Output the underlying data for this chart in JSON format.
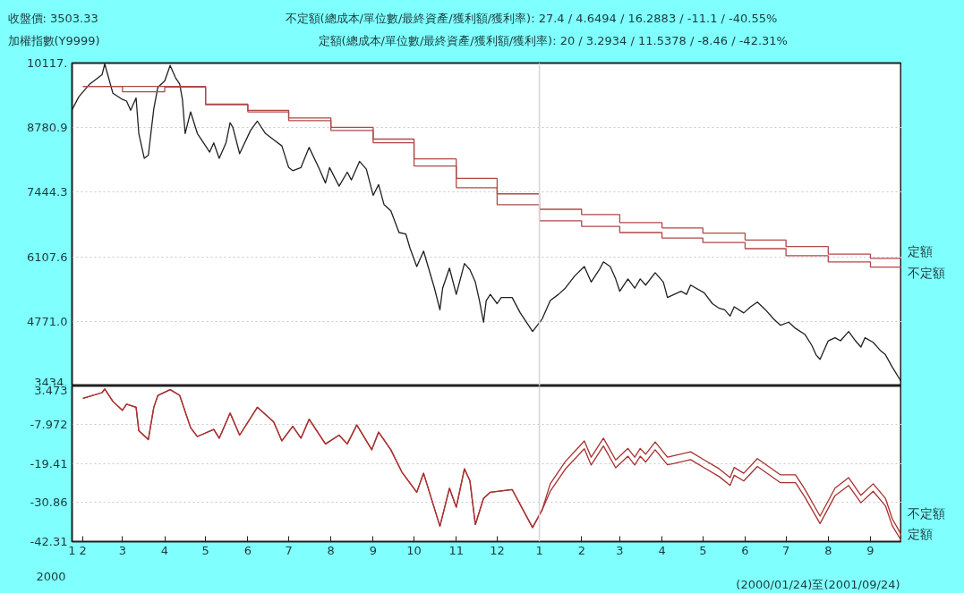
{
  "chart_data": [
    {
      "type": "line",
      "annotations": [
        "收盤價: 3503.33",
        "不定額(總成本/單位數/最終資產/獲利額/獲利率): 27.4 / 4.6494 / 16.2883 / -11.1 / -40.55%",
        "加權指數(Y9999)",
        "定額(總成本/單位數/最終資產/獲利額/獲利率): 20 / 3.2934 / 11.5378 / -8.46 / -42.31%"
      ],
      "xlim": [
        "2000-01-24",
        "2001-09-24"
      ],
      "ylim": [
        3434,
        10117
      ],
      "yticks": [
        {
          "value": 10117,
          "label": "10117."
        },
        8780.9,
        7444.3,
        6107.6,
        {
          "value": 4771.0,
          "label": "4771.0"
        },
        {
          "value": 3434,
          "label": "3434."
        }
      ],
      "tick_labels": "y",
      "grid": "y",
      "ref_lines": [
        {
          "axis": "x",
          "value": "2001-01-01",
          "color": "#d4d4dc"
        }
      ],
      "series": [
        {
          "type": "line",
          "color": "#202020",
          "x": [
            "2000-01-24",
            "2000-01-29",
            "2000-02-06",
            "2000-02-15",
            "2000-02-17",
            "2000-02-23",
            "2000-03-01",
            "2000-03-04",
            "2000-03-07",
            "2000-03-11",
            "2000-03-13",
            "2000-03-17",
            "2000-03-20",
            "2000-03-24",
            "2000-03-27",
            "2000-04-01",
            "2000-04-05",
            "2000-04-09",
            "2000-04-12",
            "2000-04-14",
            "2000-04-16",
            "2000-04-20",
            "2000-04-25",
            "2000-05-01",
            "2000-05-04",
            "2000-05-07",
            "2000-05-11",
            "2000-05-16",
            "2000-05-19",
            "2000-05-21",
            "2000-05-26",
            "2000-06-03",
            "2000-06-08",
            "2000-06-14",
            "2000-06-20",
            "2000-06-26",
            "2000-07-01",
            "2000-07-04",
            "2000-07-10",
            "2000-07-16",
            "2000-07-23",
            "2000-07-28",
            "2000-07-31",
            "2000-08-07",
            "2000-08-13",
            "2000-08-16",
            "2000-08-22",
            "2000-08-27",
            "2000-09-01",
            "2000-09-05",
            "2000-09-09",
            "2000-09-14",
            "2000-09-20",
            "2000-09-25",
            "2000-09-28",
            "2000-10-03",
            "2000-10-08",
            "2000-10-12",
            "2000-10-16",
            "2000-10-20",
            "2000-10-22",
            "2000-10-27",
            "2000-11-01",
            "2000-11-07",
            "2000-11-11",
            "2000-11-15",
            "2000-11-18",
            "2000-11-21",
            "2000-11-23",
            "2000-11-26",
            "2000-12-01",
            "2000-12-04",
            "2000-12-12",
            "2000-12-18",
            "2000-12-24",
            "2000-12-27",
            "2001-01-03",
            "2001-01-09",
            "2001-01-15",
            "2001-01-20",
            "2001-01-27",
            "2001-02-03",
            "2001-02-08",
            "2001-02-14",
            "2001-02-17",
            "2001-02-22",
            "2001-02-26",
            "2001-03-01",
            "2001-03-07",
            "2001-03-12",
            "2001-03-16",
            "2001-03-20",
            "2001-03-27",
            "2001-04-02",
            "2001-04-05",
            "2001-04-10",
            "2001-04-15",
            "2001-04-19",
            "2001-04-22",
            "2001-05-02",
            "2001-05-08",
            "2001-05-13",
            "2001-05-17",
            "2001-05-21",
            "2001-05-24",
            "2001-05-31",
            "2001-06-05",
            "2001-06-10",
            "2001-06-16",
            "2001-06-22",
            "2001-06-27",
            "2001-07-03",
            "2001-07-08",
            "2001-07-15",
            "2001-07-20",
            "2001-07-23",
            "2001-07-26",
            "2001-08-01",
            "2001-08-06",
            "2001-08-10",
            "2001-08-16",
            "2001-08-21",
            "2001-08-25",
            "2001-08-28",
            "2001-09-03",
            "2001-09-08",
            "2001-09-12",
            "2001-09-17",
            "2001-09-24"
          ],
          "values": [
            9151,
            9420,
            9683,
            9875,
            10099,
            9491,
            9363,
            9330,
            9139,
            9395,
            8658,
            8146,
            8210,
            9170,
            9619,
            9747,
            10067,
            9811,
            9683,
            9363,
            8658,
            9107,
            8658,
            8402,
            8274,
            8466,
            8146,
            8466,
            8882,
            8786,
            8242,
            8722,
            8914,
            8658,
            8530,
            8402,
            7954,
            7890,
            7954,
            8370,
            7954,
            7634,
            7954,
            7570,
            7858,
            7698,
            8082,
            7922,
            7378,
            7602,
            7186,
            7058,
            6609,
            6577,
            6289,
            5905,
            6225,
            5841,
            5457,
            5009,
            5457,
            5873,
            5329,
            5969,
            5841,
            5585,
            5201,
            4753,
            5201,
            5329,
            5137,
            5265,
            5265,
            4945,
            4689,
            4561,
            4817,
            5201,
            5329,
            5457,
            5713,
            5905,
            5585,
            5841,
            6001,
            5905,
            5649,
            5393,
            5649,
            5457,
            5649,
            5521,
            5777,
            5585,
            5265,
            5329,
            5393,
            5329,
            5521,
            5361,
            5137,
            5041,
            5009,
            4881,
            5073,
            4945,
            5073,
            5169,
            5009,
            4817,
            4689,
            4753,
            4625,
            4497,
            4272,
            4080,
            3984,
            4368,
            4432,
            4368,
            4561,
            4368,
            4240,
            4432,
            4336,
            4176,
            4080,
            3824,
            3503
          ]
        },
        {
          "type": "step",
          "name": "定額",
          "color": "#b04848",
          "x": [
            "2000-02-01",
            "2000-03-01",
            "2000-04-01",
            "2000-05-01",
            "2000-06-01",
            "2000-07-01",
            "2000-08-01",
            "2000-09-01",
            "2000-10-01",
            "2000-11-01",
            "2000-12-01",
            "2001-01-01",
            "2001-02-01",
            "2001-03-01",
            "2001-04-01",
            "2001-05-01",
            "2001-06-01",
            "2001-07-01",
            "2001-08-01",
            "2001-09-01",
            "2001-09-24"
          ],
          "values": [
            9632,
            9632,
            9632,
            9267,
            9139,
            8979,
            8786,
            8543,
            8133,
            7730,
            7410,
            7090,
            6981,
            6814,
            6705,
            6596,
            6455,
            6321,
            6161,
            6073,
            6073
          ]
        },
        {
          "type": "step",
          "name": "不定額",
          "color": "#b04848",
          "x": [
            "2000-02-01",
            "2000-03-01",
            "2000-04-01",
            "2000-05-01",
            "2000-06-01",
            "2000-07-01",
            "2000-08-01",
            "2000-09-01",
            "2000-10-01",
            "2000-11-01",
            "2000-12-01",
            "2001-01-01",
            "2001-02-01",
            "2001-03-01",
            "2001-04-01",
            "2001-05-01",
            "2001-06-01",
            "2001-07-01",
            "2001-08-01",
            "2001-09-01",
            "2001-09-24"
          ],
          "values": [
            9632,
            9523,
            9619,
            9254,
            9107,
            8927,
            8722,
            8466,
            7986,
            7538,
            7186,
            6853,
            6737,
            6609,
            6494,
            6404,
            6276,
            6129,
            6001,
            5893,
            5893
          ]
        }
      ]
    },
    {
      "type": "line",
      "annotations": [
        "2000",
        "(2000/01/24)至(2001/09/24)"
      ],
      "xlim": [
        "2000-01-24",
        "2001-09-24"
      ],
      "xticks": [
        {
          "value": "2000-01-24",
          "label": "1"
        },
        {
          "value": "2000-02-01",
          "label": "2"
        },
        {
          "value": "2000-03-01",
          "label": "3"
        },
        {
          "value": "2000-04-01",
          "label": "4"
        },
        {
          "value": "2000-05-01",
          "label": "5"
        },
        {
          "value": "2000-06-01",
          "label": "6"
        },
        {
          "value": "2000-07-01",
          "label": "7"
        },
        {
          "value": "2000-08-01",
          "label": "8"
        },
        {
          "value": "2000-09-01",
          "label": "9"
        },
        {
          "value": "2000-10-01",
          "label": "10"
        },
        {
          "value": "2000-11-01",
          "label": "11"
        },
        {
          "value": "2000-12-01",
          "label": "12"
        },
        {
          "value": "2001-01-01",
          "label": "1"
        },
        {
          "value": "2001-02-01",
          "label": "2"
        },
        {
          "value": "2001-03-01",
          "label": "3"
        },
        {
          "value": "2001-04-01",
          "label": "4"
        },
        {
          "value": "2001-05-01",
          "label": "5"
        },
        {
          "value": "2001-06-01",
          "label": "6"
        },
        {
          "value": "2001-07-01",
          "label": "7"
        },
        {
          "value": "2001-08-01",
          "label": "8"
        },
        {
          "value": "2001-09-01",
          "label": "9"
        }
      ],
      "ylim": [
        -42.31,
        3.473
      ],
      "yticks": [
        3.473,
        -7.972,
        -19.41,
        -30.86,
        -42.31
      ],
      "grid": "y",
      "ref_lines": [
        {
          "axis": "x",
          "value": "2001-01-01",
          "color": "#d4d4dc"
        }
      ],
      "series": [
        {
          "name": "不定額",
          "color": "#a83030",
          "x": [
            "2000-02-01",
            "2000-02-15",
            "2000-02-17",
            "2000-02-23",
            "2000-03-01",
            "2000-03-04",
            "2000-03-11",
            "2000-03-13",
            "2000-03-20",
            "2000-03-24",
            "2000-03-27",
            "2000-04-05",
            "2000-04-12",
            "2000-04-20",
            "2000-04-25",
            "2000-05-07",
            "2000-05-11",
            "2000-05-19",
            "2000-05-26",
            "2000-06-08",
            "2000-06-20",
            "2000-06-26",
            "2000-07-04",
            "2000-07-10",
            "2000-07-16",
            "2000-07-28",
            "2000-08-07",
            "2000-08-13",
            "2000-08-20",
            "2000-08-31",
            "2000-09-05",
            "2000-09-14",
            "2000-09-22",
            "2000-10-03",
            "2000-10-08",
            "2000-10-20",
            "2000-10-27",
            "2000-11-01",
            "2000-11-07",
            "2000-11-11",
            "2000-11-15",
            "2000-11-21",
            "2000-11-26",
            "2000-12-12",
            "2000-12-27",
            "2001-01-03",
            "2001-01-09",
            "2001-01-20",
            "2001-02-03",
            "2001-02-08",
            "2001-02-17",
            "2001-02-26",
            "2001-03-07",
            "2001-03-12",
            "2001-03-16",
            "2001-03-20",
            "2001-03-27",
            "2001-04-05",
            "2001-04-10",
            "2001-04-22",
            "2001-05-02",
            "2001-05-13",
            "2001-05-21",
            "2001-05-24",
            "2001-05-31",
            "2001-06-10",
            "2001-06-27",
            "2001-07-08",
            "2001-07-15",
            "2001-07-26",
            "2001-08-06",
            "2001-08-16",
            "2001-08-25",
            "2001-09-03",
            "2001-09-12",
            "2001-09-17",
            "2001-09-24"
          ],
          "values": [
            -0.2,
            1.5,
            2.6,
            -1.1,
            -3.7,
            -1.9,
            -2.8,
            -9.7,
            -12.3,
            -2.8,
            0.7,
            2.4,
            0.7,
            -8.8,
            -11.4,
            -9.3,
            -11.9,
            -4.5,
            -11.0,
            -2.8,
            -7.1,
            -12.7,
            -8.4,
            -11.9,
            -6.3,
            -13.6,
            -11.0,
            -13.6,
            -8.0,
            -15.3,
            -10.1,
            -15.3,
            -21.8,
            -27.8,
            -22.2,
            -37.8,
            -26.6,
            -32.2,
            -20.9,
            -24.4,
            -37.3,
            -29.6,
            -27.8,
            -27.0,
            -38.2,
            -33.0,
            -25.3,
            -18.8,
            -12.7,
            -17.5,
            -11.9,
            -18.3,
            -14.9,
            -17.5,
            -14.9,
            -16.6,
            -13.0,
            -17.5,
            -17.0,
            -15.9,
            -18.3,
            -20.9,
            -23.5,
            -20.5,
            -22.2,
            -17.9,
            -22.7,
            -22.7,
            -27.0,
            -34.8,
            -26.6,
            -23.5,
            -28.7,
            -25.3,
            -29.6,
            -35.6,
            -40.55
          ]
        },
        {
          "name": "定額",
          "color": "#a83030",
          "x": [
            "2000-02-01",
            "2000-02-15",
            "2000-02-17",
            "2000-02-23",
            "2000-03-01",
            "2000-03-04",
            "2000-03-11",
            "2000-03-13",
            "2000-03-20",
            "2000-03-24",
            "2000-03-27",
            "2000-04-05",
            "2000-04-12",
            "2000-04-20",
            "2000-04-25",
            "2000-05-07",
            "2000-05-11",
            "2000-05-19",
            "2000-05-26",
            "2000-06-08",
            "2000-06-20",
            "2000-06-26",
            "2000-07-04",
            "2000-07-10",
            "2000-07-16",
            "2000-07-28",
            "2000-08-07",
            "2000-08-13",
            "2000-08-20",
            "2000-08-31",
            "2000-09-05",
            "2000-09-14",
            "2000-09-22",
            "2000-10-03",
            "2000-10-08",
            "2000-10-20",
            "2000-10-27",
            "2000-11-01",
            "2000-11-07",
            "2000-11-11",
            "2000-11-15",
            "2000-11-21",
            "2000-11-26",
            "2000-12-12",
            "2000-12-27",
            "2001-01-03",
            "2001-01-09",
            "2001-01-20",
            "2001-02-03",
            "2001-02-08",
            "2001-02-17",
            "2001-02-26",
            "2001-03-07",
            "2001-03-12",
            "2001-03-16",
            "2001-03-20",
            "2001-03-27",
            "2001-04-05",
            "2001-04-10",
            "2001-04-22",
            "2001-05-02",
            "2001-05-13",
            "2001-05-21",
            "2001-05-24",
            "2001-05-31",
            "2001-06-10",
            "2001-06-27",
            "2001-07-08",
            "2001-07-15",
            "2001-07-26",
            "2001-08-06",
            "2001-08-16",
            "2001-08-25",
            "2001-09-03",
            "2001-09-12",
            "2001-09-17",
            "2001-09-24"
          ],
          "values": [
            -0.2,
            1.5,
            2.6,
            -1.1,
            -3.7,
            -1.9,
            -2.8,
            -9.7,
            -12.3,
            -2.8,
            0.7,
            2.4,
            0.7,
            -8.8,
            -11.4,
            -9.3,
            -11.9,
            -4.5,
            -11.0,
            -2.8,
            -7.1,
            -12.7,
            -8.4,
            -11.9,
            -6.3,
            -13.6,
            -11.0,
            -13.6,
            -8.0,
            -15.3,
            -10.1,
            -15.3,
            -21.8,
            -27.8,
            -22.2,
            -37.8,
            -26.6,
            -32.2,
            -20.9,
            -24.4,
            -37.3,
            -29.6,
            -27.8,
            -27.0,
            -38.2,
            -33.0,
            -27.5,
            -21.0,
            -15.0,
            -19.8,
            -14.2,
            -20.6,
            -17.2,
            -19.8,
            -17.2,
            -18.9,
            -15.3,
            -19.7,
            -19.3,
            -18.2,
            -20.6,
            -23.2,
            -25.8,
            -22.8,
            -24.5,
            -20.2,
            -25.0,
            -25.0,
            -29.3,
            -37.0,
            -28.8,
            -25.8,
            -30.9,
            -27.5,
            -31.8,
            -37.6,
            -42.31
          ]
        }
      ]
    }
  ]
}
